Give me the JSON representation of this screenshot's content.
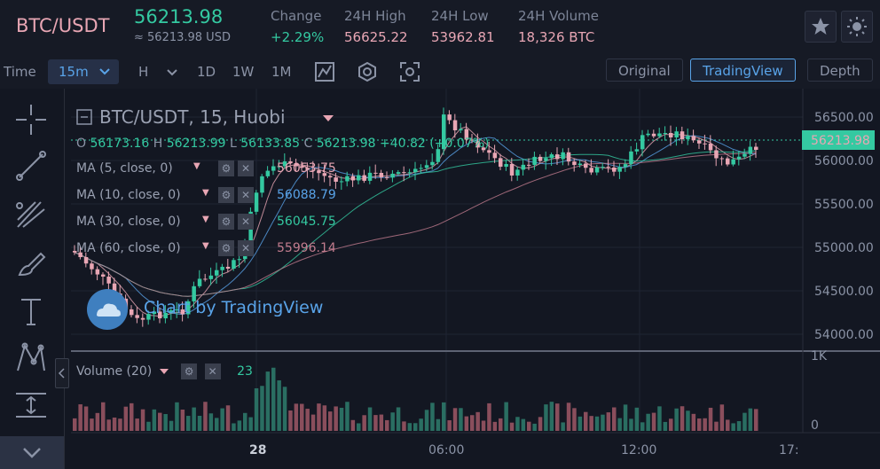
{
  "header": {
    "pair": "BTC/USDT",
    "price": "56213.98",
    "usd": "≈ 56213.98 USD",
    "stats": [
      {
        "label": "Change",
        "value": "+2.29%",
        "color": "#34c9a1"
      },
      {
        "label": "24H High",
        "value": "56625.22",
        "color": "#e8a6b4"
      },
      {
        "label": "24H Low",
        "value": "53962.81",
        "color": "#e8a6b4"
      },
      {
        "label": "24H Volume",
        "value": "18,326 BTC",
        "color": "#e8a6b4"
      }
    ]
  },
  "toolbar": {
    "time_label": "Time",
    "interval": "15m",
    "intervals": [
      "H",
      "1D",
      "1W",
      "1M"
    ],
    "views": [
      "Original",
      "TradingView",
      "Depth"
    ],
    "active_view": "TradingView"
  },
  "legend": {
    "title": "BTC/USDT, 15, Huobi",
    "o_label": "O",
    "o": "56173.16",
    "h_label": "H",
    "h": "56213.99",
    "l_label": "L",
    "l": "56133.85",
    "c_label": "C",
    "c": "56213.98",
    "chg": "+40.82 (+0.07%)",
    "ma": [
      {
        "label": "MA (5, close, 0)",
        "value": "56053.75",
        "color": "#e8a6b4"
      },
      {
        "label": "MA (10, close, 0)",
        "value": "56088.79",
        "color": "#59a3e8"
      },
      {
        "label": "MA (30, close, 0)",
        "value": "56045.75",
        "color": "#34c9a1"
      },
      {
        "label": "MA (60, close, 0)",
        "value": "55996.14",
        "color": "#c27c8e"
      }
    ],
    "volume_label": "Volume (20)",
    "volume_value": "23"
  },
  "watermark": "Chart by TradingView",
  "price_axis": {
    "labels": [
      "56500.00",
      "56000.00",
      "55500.00",
      "55000.00",
      "54500.00",
      "54000.00"
    ],
    "last": "56213.98"
  },
  "volume_axis": {
    "max": "1K",
    "min": "0"
  },
  "time_axis": {
    "labels": [
      "28",
      "06:00",
      "12:00",
      "17:"
    ]
  },
  "colors": {
    "up": "#34c9a1",
    "down": "#e8a6b4",
    "bg": "#131722"
  }
}
